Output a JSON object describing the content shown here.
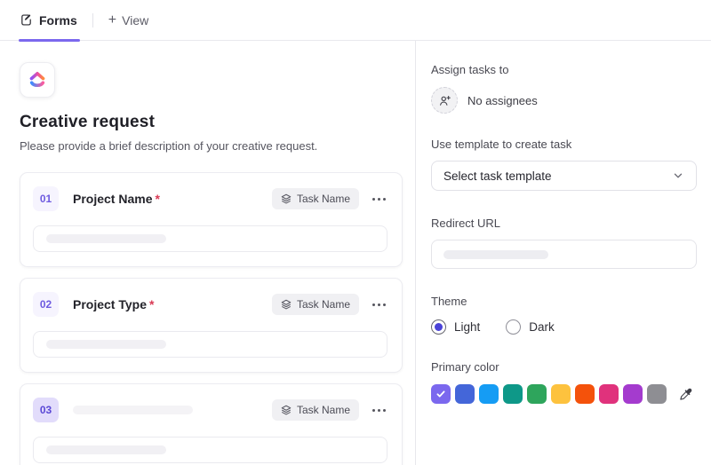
{
  "tabbar": {
    "forms_tab": "Forms",
    "view_tab": "View",
    "plus": "+"
  },
  "brand": {
    "accent": "#7b68ee"
  },
  "form": {
    "title": "Creative request",
    "description": "Please provide a brief description of your creative request.",
    "fields": [
      {
        "number": "01",
        "label": "Project Name",
        "required": "*",
        "chip": "Task Name"
      },
      {
        "number": "02",
        "label": "Project Type",
        "required": "*",
        "chip": "Task Name"
      },
      {
        "number": "03",
        "label": "",
        "chip": "Task Name"
      }
    ]
  },
  "settings": {
    "assign": {
      "label": "Assign tasks to",
      "value": "No assignees"
    },
    "template": {
      "label": "Use template to create task",
      "placeholder": "Select task template"
    },
    "redirect": {
      "label": "Redirect URL"
    },
    "theme": {
      "label": "Theme",
      "options": [
        "Light",
        "Dark"
      ],
      "selected": "Light"
    },
    "primary_color": {
      "label": "Primary color",
      "colors": [
        "#7b68ee",
        "#4466d9",
        "#159cf4",
        "#0e9888",
        "#2ea55c",
        "#fdc23e",
        "#f4520b",
        "#e0327c",
        "#a43bce",
        "#8e8e93"
      ],
      "selected_index": 0
    }
  }
}
